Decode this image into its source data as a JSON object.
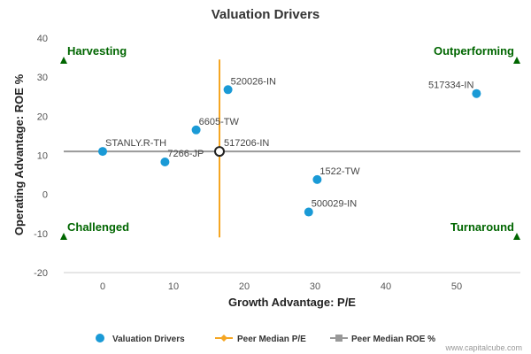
{
  "chart_data": {
    "type": "scatter",
    "title": "Valuation Drivers",
    "xlabel": "Growth Advantage: P/E",
    "ylabel": "Operating Advantage: ROE %",
    "xlim": [
      -5.5,
      59
    ],
    "ylim": [
      -20,
      40
    ],
    "x_ticks": [
      "0",
      "10",
      "20",
      "30",
      "40",
      "50"
    ],
    "y_ticks": [
      "-20",
      "-10",
      "0",
      "10",
      "20",
      "30",
      "40"
    ],
    "grid": false,
    "legend_position": "bottom",
    "series": [
      {
        "name": "Valuation Drivers",
        "color": "#1a9ad6",
        "points": [
          {
            "label": "STANLY.R-TH",
            "x": 0,
            "y": 11
          },
          {
            "label": "7266-JP",
            "x": 8.8,
            "y": 8.3
          },
          {
            "label": "6605-TW",
            "x": 13.2,
            "y": 16.5
          },
          {
            "label": "520026-IN",
            "x": 17.7,
            "y": 26.8
          },
          {
            "label": "517334-IN",
            "x": 52.8,
            "y": 25.8
          },
          {
            "label": "1522-TW",
            "x": 30.3,
            "y": 3.8
          },
          {
            "label": "500029-IN",
            "x": 29.1,
            "y": -4.5
          }
        ]
      },
      {
        "name": "Peer Median P/E",
        "color": "#f5a623",
        "value": 16.5,
        "y_range": [
          -11,
          34.5
        ]
      },
      {
        "name": "Peer Median ROE %",
        "color": "#999999",
        "value": 11,
        "x_range": [
          -5.5,
          59
        ]
      }
    ],
    "median_point": {
      "label": "517206-IN",
      "x": 16.5,
      "y": 11
    },
    "quadrant_labels": [
      {
        "text": "Harvesting",
        "corner": "top-left"
      },
      {
        "text": "Outperforming",
        "corner": "top-right"
      },
      {
        "text": "Challenged",
        "corner": "bottom-left"
      },
      {
        "text": "Turnaround",
        "corner": "bottom-right"
      }
    ],
    "quadrant_color": "#006600"
  },
  "credit": "www.capitalcube.com"
}
